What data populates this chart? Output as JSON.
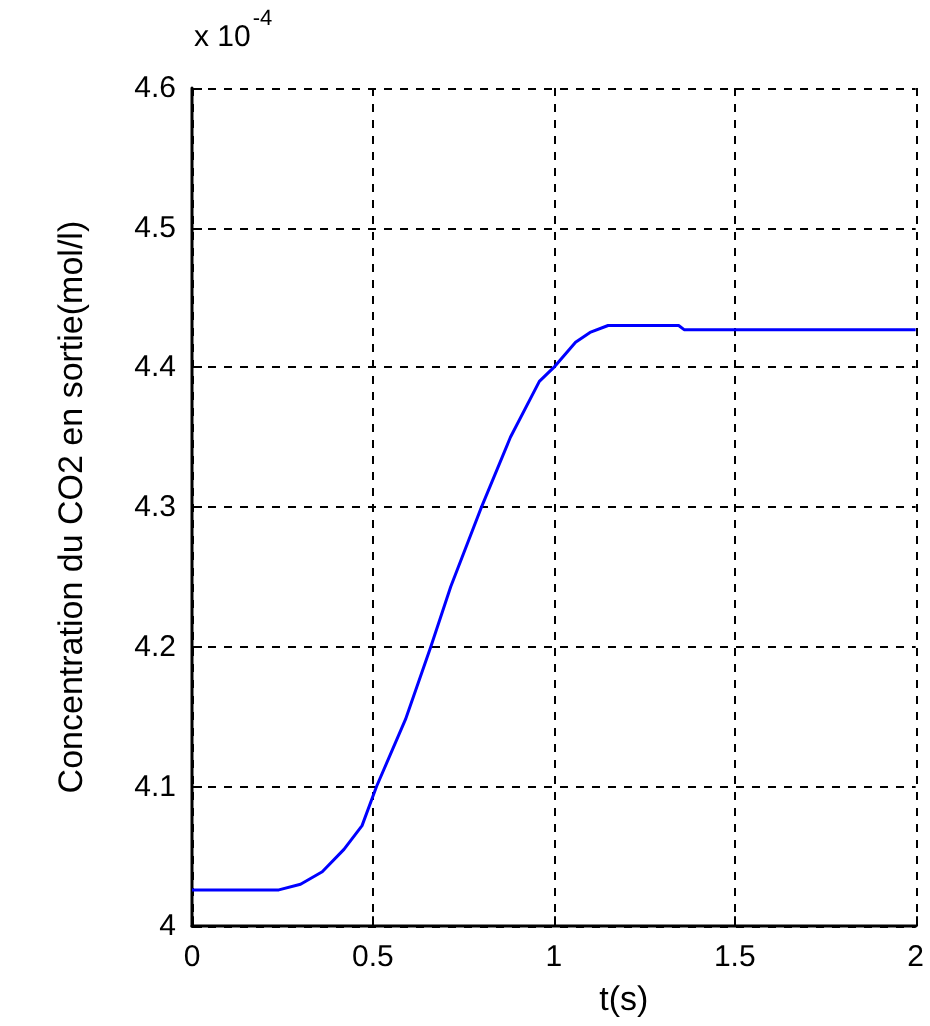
{
  "chart_data": {
    "type": "line",
    "xlabel": "t(s)",
    "ylabel": "Concentration du CO2 en sortie(mol/l)",
    "annotations": [
      "x 10$^{-4}$"
    ],
    "x": [
      0,
      0.24,
      0.3,
      0.36,
      0.42,
      0.47,
      0.51,
      0.59,
      0.66,
      0.715,
      0.8,
      0.88,
      0.96,
      1.0,
      1.06,
      1.1,
      1.15,
      1.345,
      1.36,
      2
    ],
    "series": [
      {
        "color": "#0000ff",
        "values": [
          4.026,
          4.026,
          4.03,
          4.039,
          4.055,
          4.072,
          4.1,
          4.148,
          4.2,
          4.243,
          4.3,
          4.35,
          4.39,
          4.4,
          4.418,
          4.425,
          4.43,
          4.43,
          4.427,
          4.427
        ]
      }
    ],
    "xlim": [
      0,
      2
    ],
    "xticks": [
      0,
      0.5,
      1,
      1.5,
      2
    ],
    "ylim": [
      4,
      4.6
    ],
    "yticks": [
      4,
      4.1,
      4.2,
      4.3,
      4.4,
      4.5,
      4.6
    ],
    "grid": true,
    "marker": "none",
    "line_style": "solid"
  }
}
